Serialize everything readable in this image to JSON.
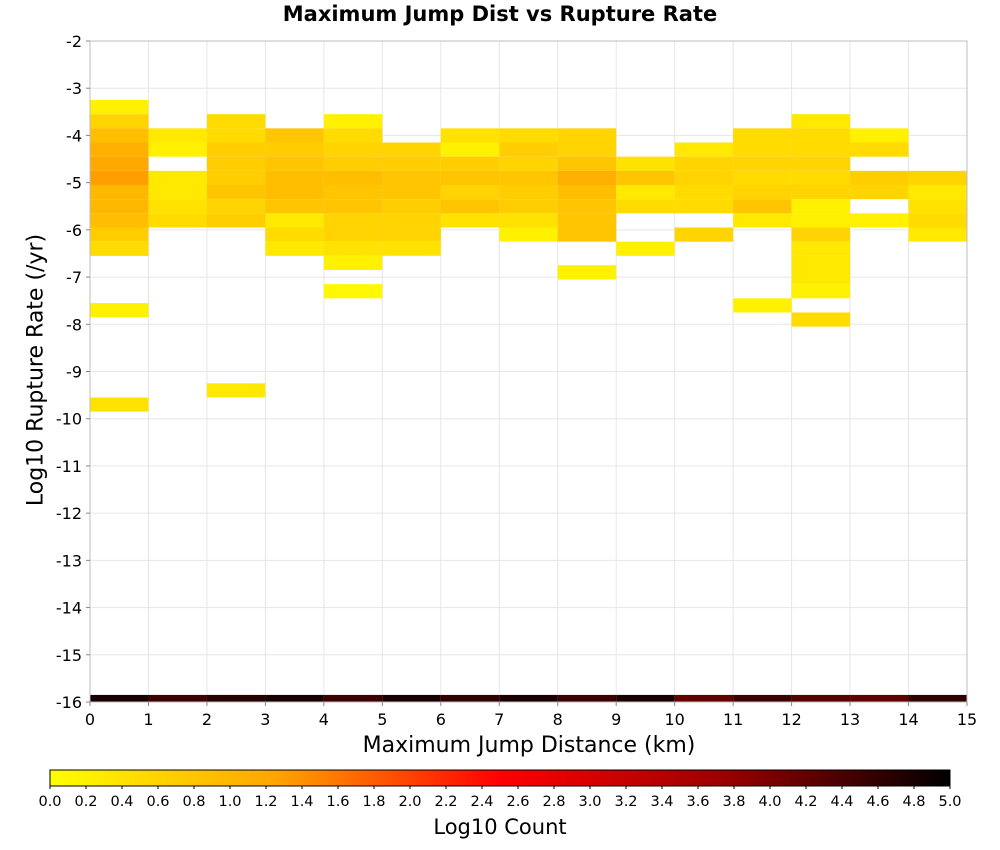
{
  "chart_data": {
    "type": "heatmap",
    "title": "Maximum Jump Dist vs Rupture Rate",
    "xlabel": "Maximum Jump Distance (km)",
    "ylabel": "Log10 Rupture Rate (/yr)",
    "xlim": [
      0,
      15
    ],
    "ylim": [
      -16,
      -2
    ],
    "x_ticks": [
      0,
      1,
      2,
      3,
      4,
      5,
      6,
      7,
      8,
      9,
      10,
      11,
      12,
      13,
      14,
      15
    ],
    "y_ticks": [
      -2,
      -3,
      -4,
      -5,
      -6,
      -7,
      -8,
      -9,
      -10,
      -11,
      -12,
      -13,
      -14,
      -15,
      -16
    ],
    "grid": true,
    "x_bin_width": 1,
    "y_bin_height": 0.3,
    "colorbar": {
      "label": "Log10 Count",
      "range": [
        0,
        5
      ],
      "ticks": [
        "0.0",
        "0.2",
        "0.4",
        "0.6",
        "0.8",
        "1.0",
        "1.2",
        "1.4",
        "1.6",
        "1.8",
        "2.0",
        "2.2",
        "2.4",
        "2.6",
        "2.8",
        "3.0",
        "3.2",
        "3.4",
        "3.6",
        "3.8",
        "4.0",
        "4.2",
        "4.4",
        "4.6",
        "4.8",
        "5.0"
      ],
      "colors": [
        "#ffff00",
        "#ffa500",
        "#ff0000",
        "#990000",
        "#000000"
      ]
    },
    "cells": [
      {
        "x": 0,
        "ys": [
          -3.4,
          -3.7,
          -4.0,
          -4.3,
          -4.6,
          -4.9,
          -5.2,
          -5.5,
          -5.8,
          -6.1,
          -6.4,
          -7.7,
          -9.7
        ],
        "vs": [
          0.2,
          0.6,
          0.9,
          1.1,
          1.2,
          1.3,
          1.0,
          1.0,
          0.9,
          0.7,
          0.5,
          0.2,
          0.4
        ]
      },
      {
        "x": 1,
        "ys": [
          -4.0,
          -4.3,
          -4.9,
          -5.2,
          -5.5,
          -5.8
        ],
        "vs": [
          0.3,
          0.2,
          0.3,
          0.3,
          0.4,
          0.5
        ]
      },
      {
        "x": 2,
        "ys": [
          -3.7,
          -4.0,
          -4.3,
          -4.6,
          -4.9,
          -5.2,
          -5.5,
          -5.8,
          -9.4
        ],
        "vs": [
          0.5,
          0.5,
          0.7,
          0.7,
          0.7,
          0.8,
          0.6,
          0.7,
          0.3
        ]
      },
      {
        "x": 3,
        "ys": [
          -4.0,
          -4.3,
          -4.6,
          -4.9,
          -5.2,
          -5.5,
          -5.8,
          -6.1,
          -6.4
        ],
        "vs": [
          0.8,
          0.7,
          0.8,
          0.9,
          0.9,
          0.8,
          0.3,
          0.5,
          0.3
        ]
      },
      {
        "x": 4,
        "ys": [
          -3.7,
          -4.0,
          -4.3,
          -4.6,
          -4.9,
          -5.2,
          -5.5,
          -5.8,
          -6.1,
          -6.4,
          -6.7,
          -7.3
        ],
        "vs": [
          0.2,
          0.5,
          0.6,
          0.7,
          0.9,
          0.8,
          0.8,
          0.6,
          0.6,
          0.4,
          0.2,
          0.1
        ]
      },
      {
        "x": 5,
        "ys": [
          -4.3,
          -4.6,
          -4.9,
          -5.2,
          -5.5,
          -5.8,
          -6.1,
          -6.4
        ],
        "vs": [
          0.6,
          0.7,
          0.8,
          0.8,
          0.7,
          0.6,
          0.6,
          0.4
        ]
      },
      {
        "x": 6,
        "ys": [
          -4.0,
          -4.3,
          -4.6,
          -4.9,
          -5.2,
          -5.5,
          -5.8
        ],
        "vs": [
          0.4,
          0.2,
          0.7,
          0.8,
          0.6,
          0.8,
          0.4
        ]
      },
      {
        "x": 7,
        "ys": [
          -4.0,
          -4.3,
          -4.6,
          -4.9,
          -5.2,
          -5.5,
          -5.8,
          -6.1
        ],
        "vs": [
          0.5,
          0.7,
          0.6,
          0.8,
          0.7,
          0.7,
          0.4,
          0.2
        ]
      },
      {
        "x": 8,
        "ys": [
          -4.0,
          -4.3,
          -4.6,
          -4.9,
          -5.2,
          -5.5,
          -5.8,
          -6.1,
          -6.9
        ],
        "vs": [
          0.6,
          0.6,
          0.8,
          1.1,
          0.9,
          0.8,
          0.8,
          0.8,
          0.2
        ]
      },
      {
        "x": 9,
        "ys": [
          -4.6,
          -4.9,
          -5.2,
          -5.5,
          -6.4
        ],
        "vs": [
          0.4,
          0.8,
          0.3,
          0.5,
          0.2
        ]
      },
      {
        "x": 10,
        "ys": [
          -4.3,
          -4.6,
          -4.9,
          -5.2,
          -5.5,
          -6.1
        ],
        "vs": [
          0.3,
          0.6,
          0.6,
          0.5,
          0.5,
          0.6
        ]
      },
      {
        "x": 11,
        "ys": [
          -4.0,
          -4.3,
          -4.6,
          -4.9,
          -5.2,
          -5.5,
          -5.8,
          -7.6
        ],
        "vs": [
          0.5,
          0.5,
          0.6,
          0.5,
          0.6,
          0.8,
          0.3,
          0.2
        ]
      },
      {
        "x": 12,
        "ys": [
          -3.7,
          -4.0,
          -4.3,
          -4.6,
          -4.9,
          -5.2,
          -5.5,
          -5.8,
          -6.1,
          -6.4,
          -6.7,
          -7.0,
          -7.3,
          -7.9
        ],
        "vs": [
          0.3,
          0.5,
          0.5,
          0.6,
          0.5,
          0.6,
          0.2,
          0.2,
          0.6,
          0.3,
          0.3,
          0.3,
          0.2,
          0.5
        ]
      },
      {
        "x": 13,
        "ys": [
          -4.0,
          -4.3,
          -4.9,
          -5.2,
          -5.8
        ],
        "vs": [
          0.2,
          0.5,
          0.7,
          0.6,
          0.2
        ]
      },
      {
        "x": 14,
        "ys": [
          -4.9,
          -5.2,
          -5.5,
          -5.8,
          -6.1
        ],
        "vs": [
          0.6,
          0.3,
          0.4,
          0.5,
          0.3
        ]
      }
    ],
    "bottom_row": {
      "y": -16,
      "values": [
        4.8,
        4.5,
        4.7,
        4.8,
        4.5,
        4.8,
        4.6,
        4.8,
        4.5,
        4.8,
        4.2,
        4.5,
        4.3,
        4.2,
        4.6
      ]
    }
  }
}
